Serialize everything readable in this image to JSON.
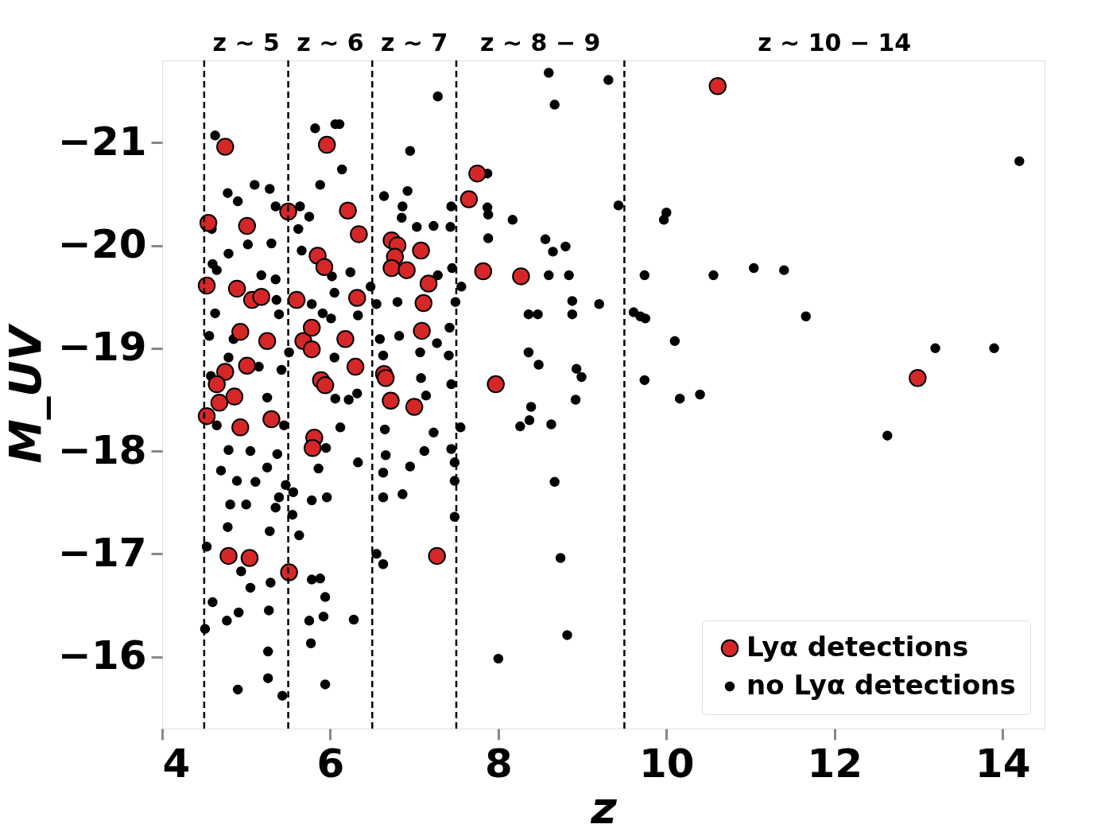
{
  "chart_data": {
    "type": "scatter",
    "xlabel": "z",
    "ylabel": "M_UV",
    "xlim": [
      4,
      14.5
    ],
    "ylim": [
      -15.3,
      -21.8
    ],
    "xticks": [
      4,
      6,
      8,
      10,
      12,
      14
    ],
    "yticks": [
      -21,
      -20,
      -19,
      -18,
      -17,
      -16
    ],
    "grid": false,
    "legend": "bottom right",
    "marker": "circle",
    "ref_lines": [
      {
        "axis": "x",
        "value": 4.5,
        "color": "#000000",
        "line_style": "dashed"
      },
      {
        "axis": "x",
        "value": 5.5,
        "color": "#000000",
        "line_style": "dashed"
      },
      {
        "axis": "x",
        "value": 6.5,
        "color": "#000000",
        "line_style": "dashed"
      },
      {
        "axis": "x",
        "value": 7.5,
        "color": "#000000",
        "line_style": "dashed"
      },
      {
        "axis": "x",
        "value": 9.5,
        "color": "#000000",
        "line_style": "dashed"
      }
    ],
    "annotations": [
      "z ∼ 5",
      "z ∼ 6",
      "z ∼ 7",
      "z ∼ 8 − 9",
      "z ∼ 10 − 14"
    ],
    "series": [
      {
        "name": "Lyα detections",
        "color": "#d62728",
        "x": [
          4.75,
          4.55,
          5.01,
          4.53,
          4.89,
          5.07,
          5.18,
          4.93,
          5.25,
          5.01,
          4.75,
          4.65,
          4.68,
          4.86,
          4.53,
          4.93,
          5.3,
          4.79,
          5.04,
          5.51,
          5.5,
          5.6,
          5.68,
          5.78,
          5.78,
          5.85,
          5.93,
          5.96,
          5.89,
          5.94,
          5.81,
          5.79,
          6.21,
          6.34,
          6.32,
          6.18,
          6.3,
          6.73,
          6.8,
          6.77,
          6.73,
          6.91,
          7.08,
          7.17,
          7.11,
          7.09,
          6.64,
          6.66,
          6.72,
          7.0,
          7.27,
          7.75,
          7.65,
          7.82,
          8.27,
          7.97,
          10.61,
          12.99
        ],
        "values": [
          -20.96,
          -20.22,
          -20.19,
          -19.61,
          -19.58,
          -19.47,
          -19.5,
          -19.16,
          -19.07,
          -18.83,
          -18.77,
          -18.65,
          -18.47,
          -18.53,
          -18.34,
          -18.23,
          -18.31,
          -16.98,
          -16.96,
          -16.82,
          -20.33,
          -19.47,
          -19.07,
          -19.2,
          -18.99,
          -19.9,
          -19.79,
          -20.98,
          -18.69,
          -18.64,
          -18.13,
          -18.03,
          -20.34,
          -20.11,
          -19.49,
          -19.09,
          -18.82,
          -20.05,
          -20.0,
          -19.89,
          -19.78,
          -19.76,
          -19.95,
          -19.63,
          -19.44,
          -19.17,
          -18.75,
          -18.71,
          -18.49,
          -18.43,
          -16.98,
          -20.7,
          -20.45,
          -19.75,
          -19.7,
          -18.65,
          -21.55,
          -18.71
        ]
      },
      {
        "name": "no Lyα detections",
        "color": "#000000",
        "x": [
          8.6,
          9.31,
          8.67,
          7.28,
          14.2,
          7.87,
          7.87,
          7.88,
          8.17,
          7.88,
          9.43,
          10.0,
          9.97,
          8.56,
          8.8,
          8.65,
          8.6,
          8.84,
          9.74,
          10.56,
          11.04,
          11.4,
          9.2,
          8.88,
          9.61,
          9.69,
          9.75,
          8.36,
          8.47,
          8.88,
          11.66,
          10.1,
          8.36,
          8.48,
          8.93,
          8.99,
          9.74,
          13.2,
          13.9,
          8.92,
          10.16,
          10.4,
          8.39,
          8.37,
          8.26,
          8.63,
          7.55,
          12.63,
          8.67,
          8.74,
          8.82,
          8.0,
          7.56,
          7.49,
          7.48,
          7.48,
          7.48,
          4.63,
          6.06,
          6.11,
          5.82,
          6.95,
          6.14,
          5.1,
          4.78,
          5.28,
          6.92,
          5.88,
          6.64,
          7.44,
          6.86,
          6.85,
          4.9,
          5.35,
          5.64,
          5.75,
          4.59,
          5.62,
          7.03,
          7.23,
          7.43,
          5.02,
          4.79,
          5.3,
          5.66,
          6.02,
          4.65,
          6.48,
          6.55,
          6.8,
          7.45,
          7.28,
          5.35,
          5.18,
          6.24,
          4.63,
          5.39,
          6.01,
          6.33,
          6.59,
          6.82,
          7.42,
          7.27,
          4.56,
          4.85,
          5.51,
          6.05,
          6.63,
          7.07,
          7.41,
          4.79,
          5.15,
          5.42,
          4.58,
          7.08,
          7.44,
          6.32,
          7.14,
          6.06,
          5.25,
          4.65,
          5.45,
          6.22,
          6.65,
          7.23,
          6.12,
          7.44,
          4.79,
          5.05,
          5.37,
          5.95,
          6.33,
          6.66,
          7.12,
          6.95,
          5.25,
          5.86,
          4.7,
          4.89,
          5.11,
          5.47,
          6.63,
          6.86,
          6.63,
          5.96,
          5.56,
          4.81,
          5.39,
          5.35,
          5.78,
          5.0,
          4.78,
          5.28,
          5.55,
          5.63,
          4.53,
          6.55,
          6.63,
          4.94,
          5.29,
          5.05,
          5.78,
          5.88,
          5.94,
          4.6,
          5.27,
          6.28,
          4.91,
          5.75,
          5.92,
          4.51,
          4.77,
          5.26,
          5.26,
          4.9,
          5.43,
          5.94,
          5.77,
          5.78,
          5.91,
          5.36,
          4.6,
          6.05
        ],
        "values": [
          -21.68,
          -21.61,
          -21.37,
          -21.45,
          -20.82,
          -20.7,
          -20.37,
          -20.3,
          -20.25,
          -20.07,
          -20.39,
          -20.32,
          -20.25,
          -20.06,
          -19.99,
          -19.94,
          -19.71,
          -19.71,
          -19.71,
          -19.71,
          -19.78,
          -19.76,
          -19.43,
          -19.46,
          -19.35,
          -19.31,
          -19.29,
          -19.33,
          -19.33,
          -19.33,
          -19.31,
          -19.07,
          -18.96,
          -18.84,
          -18.8,
          -18.72,
          -18.69,
          -19.0,
          -19.0,
          -18.5,
          -18.51,
          -18.55,
          -18.43,
          -18.3,
          -18.24,
          -18.26,
          -18.23,
          -18.15,
          -17.7,
          -16.96,
          -16.21,
          -15.98,
          -19.6,
          -19.45,
          -17.89,
          -17.71,
          -17.36,
          -21.07,
          -21.18,
          -21.18,
          -21.14,
          -20.92,
          -20.74,
          -20.59,
          -20.51,
          -20.55,
          -20.53,
          -20.59,
          -20.48,
          -20.38,
          -20.38,
          -20.27,
          -20.43,
          -20.38,
          -20.38,
          -20.28,
          -20.16,
          -20.16,
          -20.18,
          -20.19,
          -20.18,
          -20.01,
          -19.92,
          -20.02,
          -19.95,
          -19.7,
          -19.76,
          -19.6,
          -19.43,
          -19.45,
          -19.78,
          -19.71,
          -19.67,
          -19.71,
          -19.74,
          -19.34,
          -19.33,
          -19.29,
          -19.32,
          -19.09,
          -19.12,
          -19.2,
          -19.05,
          -19.12,
          -19.09,
          -18.96,
          -18.91,
          -18.93,
          -18.96,
          -18.93,
          -18.91,
          -18.82,
          -18.79,
          -18.73,
          -18.71,
          -18.65,
          -18.56,
          -18.54,
          -18.51,
          -18.52,
          -18.25,
          -18.25,
          -18.5,
          -18.21,
          -18.18,
          -18.23,
          -18.02,
          -18.01,
          -18.0,
          -17.97,
          -18.03,
          -17.89,
          -17.96,
          -18.0,
          -17.85,
          -17.84,
          -17.83,
          -17.81,
          -17.71,
          -17.7,
          -17.67,
          -17.79,
          -17.58,
          -17.55,
          -17.55,
          -17.6,
          -17.48,
          -17.55,
          -17.45,
          -17.52,
          -17.48,
          -17.26,
          -17.22,
          -17.38,
          -17.18,
          -17.07,
          -17.0,
          -16.9,
          -16.83,
          -16.72,
          -16.67,
          -16.75,
          -16.76,
          -16.58,
          -16.53,
          -16.45,
          -16.36,
          -16.43,
          -16.35,
          -16.39,
          -16.27,
          -16.35,
          -16.05,
          -15.79,
          -15.68,
          -15.62,
          -15.73,
          -16.13,
          -19.43,
          -19.34,
          -19.47,
          -19.82,
          -19.54
        ]
      }
    ]
  }
}
